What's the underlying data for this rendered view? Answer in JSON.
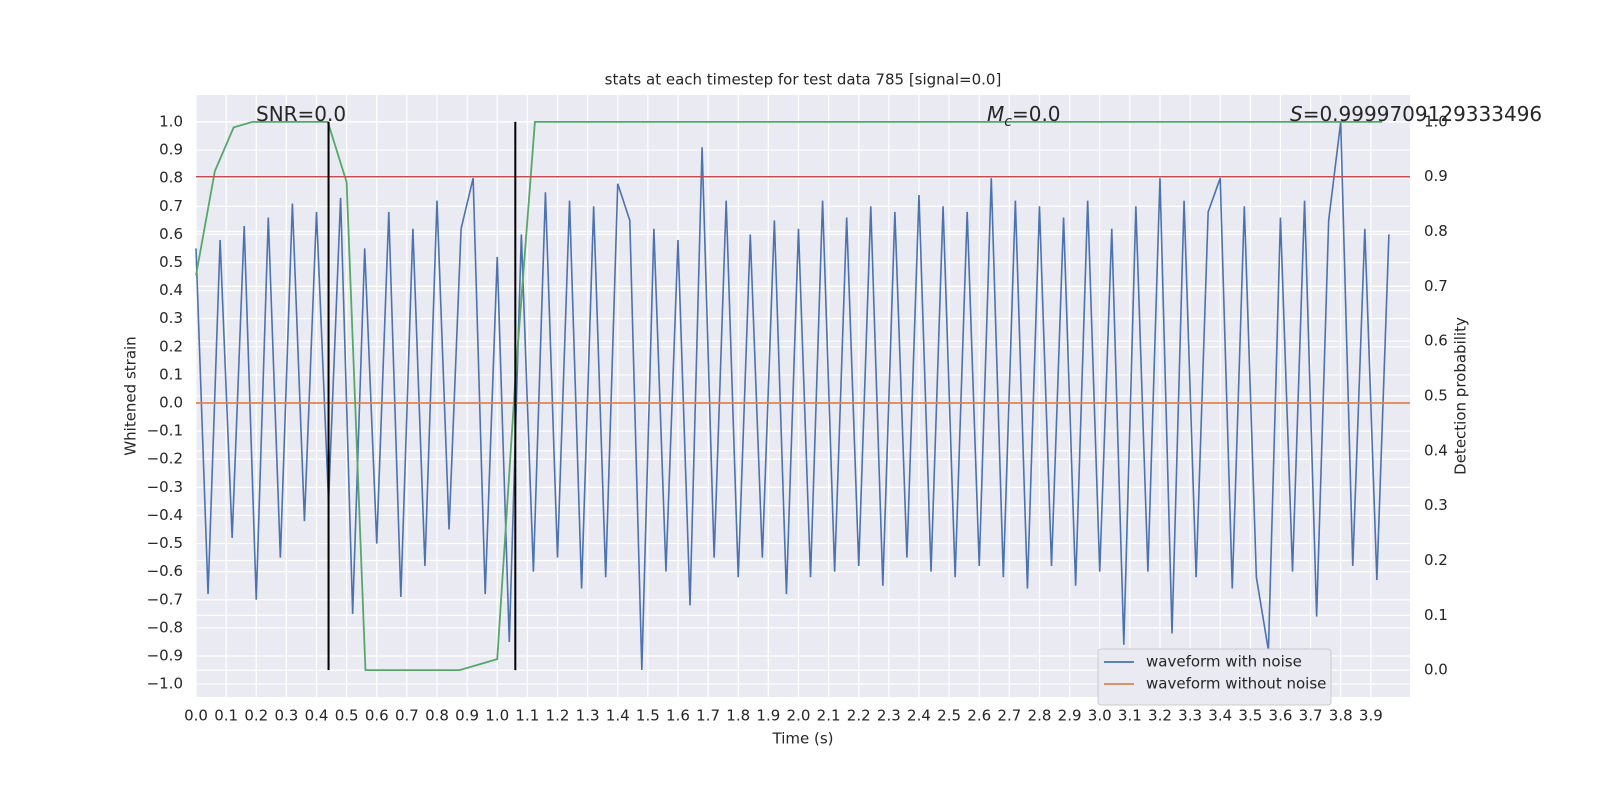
{
  "chart_data": {
    "type": "line",
    "title": "stats at each timestep for test data 785 [signal=0.0]",
    "xlabel": "Time (s)",
    "ylabel": "Whitened strain",
    "y2label": "Detection probability",
    "xlim": [
      0,
      4.03
    ],
    "ylim": [
      -1.046,
      1.096
    ],
    "y2lim": [
      -0.049,
      1.049
    ],
    "grid": true,
    "legend": "lower right",
    "xticks": [
      {
        "value": 0,
        "label": "0.0"
      },
      0.1,
      0.2,
      0.3,
      0.4,
      0.5,
      0.6,
      0.7,
      0.8,
      0.9,
      {
        "value": 1,
        "label": "1.0"
      },
      1.1,
      1.2,
      1.3,
      1.4,
      1.5,
      1.6,
      1.7,
      1.8,
      1.9,
      {
        "value": 2,
        "label": "2.0"
      },
      2.1,
      2.2,
      2.3,
      2.4,
      2.5,
      2.6,
      2.7,
      2.8,
      2.9,
      {
        "value": 3,
        "label": "3.0"
      },
      3.1,
      3.2,
      3.3,
      3.4,
      3.5,
      3.6,
      3.7,
      3.8,
      3.9
    ],
    "yticks": [
      {
        "value": -1,
        "label": "−1.0"
      },
      {
        "value": -0.9,
        "label": "−0.9"
      },
      {
        "value": -0.8,
        "label": "−0.8"
      },
      {
        "value": -0.7,
        "label": "−0.7"
      },
      {
        "value": -0.6,
        "label": "−0.6"
      },
      {
        "value": -0.5,
        "label": "−0.5"
      },
      {
        "value": -0.4,
        "label": "−0.4"
      },
      {
        "value": -0.3,
        "label": "−0.3"
      },
      {
        "value": -0.2,
        "label": "−0.2"
      },
      {
        "value": -0.1,
        "label": "−0.1"
      },
      {
        "value": 0,
        "label": "0.0"
      },
      0.1,
      0.2,
      0.3,
      0.4,
      0.5,
      0.6,
      0.7,
      0.8,
      0.9,
      {
        "value": 1,
        "label": "1.0"
      }
    ],
    "y2ticks": [
      {
        "value": 0,
        "label": "0.0"
      },
      0.1,
      0.2,
      0.3,
      0.4,
      0.5,
      0.6,
      0.7,
      0.8,
      0.9,
      {
        "value": 1,
        "label": "1.0"
      }
    ],
    "series": [
      {
        "name": "waveform with noise",
        "color": "#4c72b0",
        "x": [
          0.0,
          0.04,
          0.08,
          0.12,
          0.16,
          0.2,
          0.24,
          0.28,
          0.32,
          0.36,
          0.4,
          0.44,
          0.48,
          0.52,
          0.56,
          0.6,
          0.64,
          0.68,
          0.72,
          0.76,
          0.8,
          0.84,
          0.88,
          0.92,
          0.96,
          1.0,
          1.04,
          1.08,
          1.12,
          1.16,
          1.2,
          1.24,
          1.28,
          1.32,
          1.36,
          1.4,
          1.44,
          1.48,
          1.52,
          1.56,
          1.6,
          1.64,
          1.68,
          1.72,
          1.76,
          1.8,
          1.84,
          1.88,
          1.92,
          1.96,
          2.0,
          2.04,
          2.08,
          2.12,
          2.16,
          2.2,
          2.24,
          2.28,
          2.32,
          2.36,
          2.4,
          2.44,
          2.48,
          2.52,
          2.56,
          2.6,
          2.64,
          2.68,
          2.72,
          2.76,
          2.8,
          2.84,
          2.88,
          2.92,
          2.96,
          3.0,
          3.04,
          3.08,
          3.12,
          3.16,
          3.2,
          3.24,
          3.28,
          3.32,
          3.36,
          3.4,
          3.44,
          3.48,
          3.52,
          3.56,
          3.6,
          3.64,
          3.68,
          3.72,
          3.76,
          3.8,
          3.84,
          3.88,
          3.92,
          3.96
        ],
        "values": [
          0.55,
          -0.68,
          0.58,
          -0.48,
          0.63,
          -0.7,
          0.66,
          -0.55,
          0.71,
          -0.42,
          0.68,
          -0.35,
          0.73,
          -0.75,
          0.55,
          -0.5,
          0.68,
          -0.69,
          0.62,
          -0.58,
          0.72,
          -0.45,
          0.62,
          0.8,
          -0.68,
          0.52,
          -0.85,
          0.6,
          -0.6,
          0.75,
          -0.55,
          0.72,
          -0.66,
          0.7,
          -0.62,
          0.78,
          0.65,
          -0.95,
          0.62,
          -0.6,
          0.58,
          -0.72,
          0.91,
          -0.55,
          0.72,
          -0.62,
          0.6,
          -0.55,
          0.65,
          -0.68,
          0.62,
          -0.62,
          0.72,
          -0.6,
          0.66,
          -0.58,
          0.7,
          -0.65,
          0.68,
          -0.55,
          0.74,
          -0.6,
          0.7,
          -0.62,
          0.68,
          -0.58,
          0.8,
          -0.62,
          0.72,
          -0.66,
          0.7,
          -0.58,
          0.66,
          -0.65,
          0.72,
          -0.6,
          0.62,
          -0.86,
          0.7,
          -0.6,
          0.8,
          -0.82,
          0.72,
          -0.62,
          0.68,
          0.8,
          -0.66,
          0.7,
          -0.62,
          -0.88,
          0.66,
          -0.6,
          0.72,
          -0.76,
          0.65,
          1.0,
          -0.58,
          0.62,
          -0.63,
          0.6
        ]
      },
      {
        "name": "waveform without noise",
        "color": "#dd8452",
        "x": [
          0,
          4.03
        ],
        "values": [
          0,
          0
        ]
      },
      {
        "color": "#55a868",
        "axis": "y2",
        "x": [
          0,
          0.0625,
          0.125,
          0.1875,
          0.25,
          0.3125,
          0.375,
          0.4375,
          0.5,
          0.5625,
          0.625,
          0.6875,
          0.75,
          0.8125,
          0.875,
          0.9375,
          1.0,
          1.0625,
          1.125,
          1.1875,
          1.25,
          1.3125,
          1.375,
          1.4375,
          1.5,
          1.5625,
          1.625,
          1.6875,
          1.75,
          1.8125,
          1.875,
          1.9375,
          2.0,
          2.0625,
          2.125,
          2.1875,
          2.25,
          2.3125,
          2.375,
          2.4375,
          2.5,
          2.5625,
          2.625,
          2.6875,
          2.75,
          2.8125,
          2.875,
          2.9375,
          3.0,
          3.0625,
          3.125,
          3.1875,
          3.25,
          3.3125,
          3.375,
          3.4375,
          3.5,
          3.5625,
          3.625,
          3.6875,
          3.75,
          3.8125,
          3.875,
          3.9375
        ],
        "values": [
          0.72,
          0.91,
          0.99,
          1.0,
          1.0,
          1.0,
          1.0,
          1.0,
          0.89,
          0.0,
          0.0,
          0.0,
          0.0,
          0.0,
          0.0,
          0.01,
          0.02,
          0.55,
          1.0,
          1.0,
          1.0,
          1.0,
          1.0,
          1.0,
          1.0,
          1.0,
          1.0,
          1.0,
          1.0,
          1.0,
          1.0,
          1.0,
          1.0,
          1.0,
          1.0,
          1.0,
          1.0,
          1.0,
          1.0,
          1.0,
          1.0,
          1.0,
          1.0,
          1.0,
          1.0,
          1.0,
          1.0,
          1.0,
          1.0,
          1.0,
          1.0,
          1.0,
          1.0,
          1.0,
          1.0,
          1.0,
          1.0,
          1.0,
          1.0,
          1.0,
          1.0,
          1.0,
          1.0,
          1.0
        ]
      }
    ],
    "hlines": [
      {
        "axis": "y2",
        "value": 0.9,
        "color": "#c44e52"
      }
    ],
    "vlines": [
      {
        "axis": "y2",
        "x": 0.44,
        "ymin": 0,
        "ymax": 1,
        "color": "#000000"
      },
      {
        "axis": "y2",
        "x": 1.06,
        "ymin": 0,
        "ymax": 1,
        "color": "#000000"
      }
    ],
    "annotations": [
      {
        "text": "SNR=0.0"
      },
      {
        "symbol": "M",
        "subscript": "c",
        "text": "=0.0"
      },
      {
        "symbol": "S",
        "text": "=0.9999709129333496"
      }
    ]
  }
}
